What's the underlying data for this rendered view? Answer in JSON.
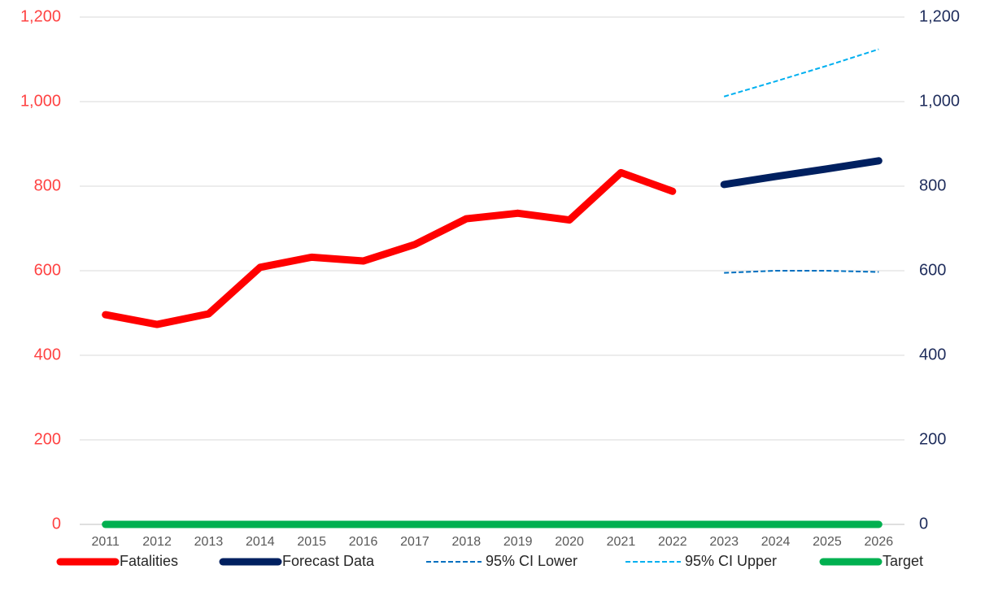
{
  "chart_data": {
    "type": "line",
    "categories": [
      "2011",
      "2012",
      "2013",
      "2014",
      "2015",
      "2016",
      "2017",
      "2018",
      "2019",
      "2020",
      "2021",
      "2022",
      "2023",
      "2024",
      "2025",
      "2026"
    ],
    "series": [
      {
        "name": "Fatalities",
        "color": "#ff0000",
        "dash": false,
        "values": [
          496,
          473,
          498,
          608,
          632,
          623,
          662,
          723,
          736,
          720,
          832,
          788,
          null,
          null,
          null,
          null
        ]
      },
      {
        "name": "Forecast Data",
        "color": "#002060",
        "dash": false,
        "axis": "y2",
        "values": [
          null,
          null,
          null,
          null,
          null,
          null,
          null,
          null,
          null,
          null,
          null,
          null,
          804,
          823,
          841,
          860
        ]
      },
      {
        "name": "95% CI Lower",
        "color": "#0070c0",
        "dash": true,
        "axis": "y2",
        "values": [
          null,
          null,
          null,
          null,
          null,
          null,
          null,
          null,
          null,
          null,
          null,
          null,
          595,
          600,
          600,
          597
        ]
      },
      {
        "name": "95% CI Upper",
        "color": "#00b0f0",
        "dash": true,
        "axis": "y2",
        "values": [
          null,
          null,
          null,
          null,
          null,
          null,
          null,
          null,
          null,
          null,
          null,
          null,
          1012,
          1048,
          1085,
          1124
        ]
      },
      {
        "name": "Target",
        "color": "#00b050",
        "dash": false,
        "values": [
          0,
          0,
          0,
          0,
          0,
          0,
          0,
          0,
          0,
          0,
          0,
          0,
          0,
          0,
          0,
          0
        ]
      }
    ],
    "ylim": [
      0,
      1200
    ],
    "yticks": [
      0,
      200,
      400,
      600,
      800,
      {
        "value": 1000,
        "label": "1,000"
      },
      {
        "value": 1200,
        "label": "1,200"
      }
    ],
    "y2lim": [
      0,
      1200
    ],
    "y2ticks": [
      0,
      200,
      400,
      600,
      800,
      {
        "value": 1000,
        "label": "1,000"
      },
      {
        "value": 1200,
        "label": "1,200"
      }
    ],
    "ytick_color": "#ff4343",
    "y2tick_color": "#1f2d5c",
    "grid": true,
    "legend": "bottom"
  }
}
